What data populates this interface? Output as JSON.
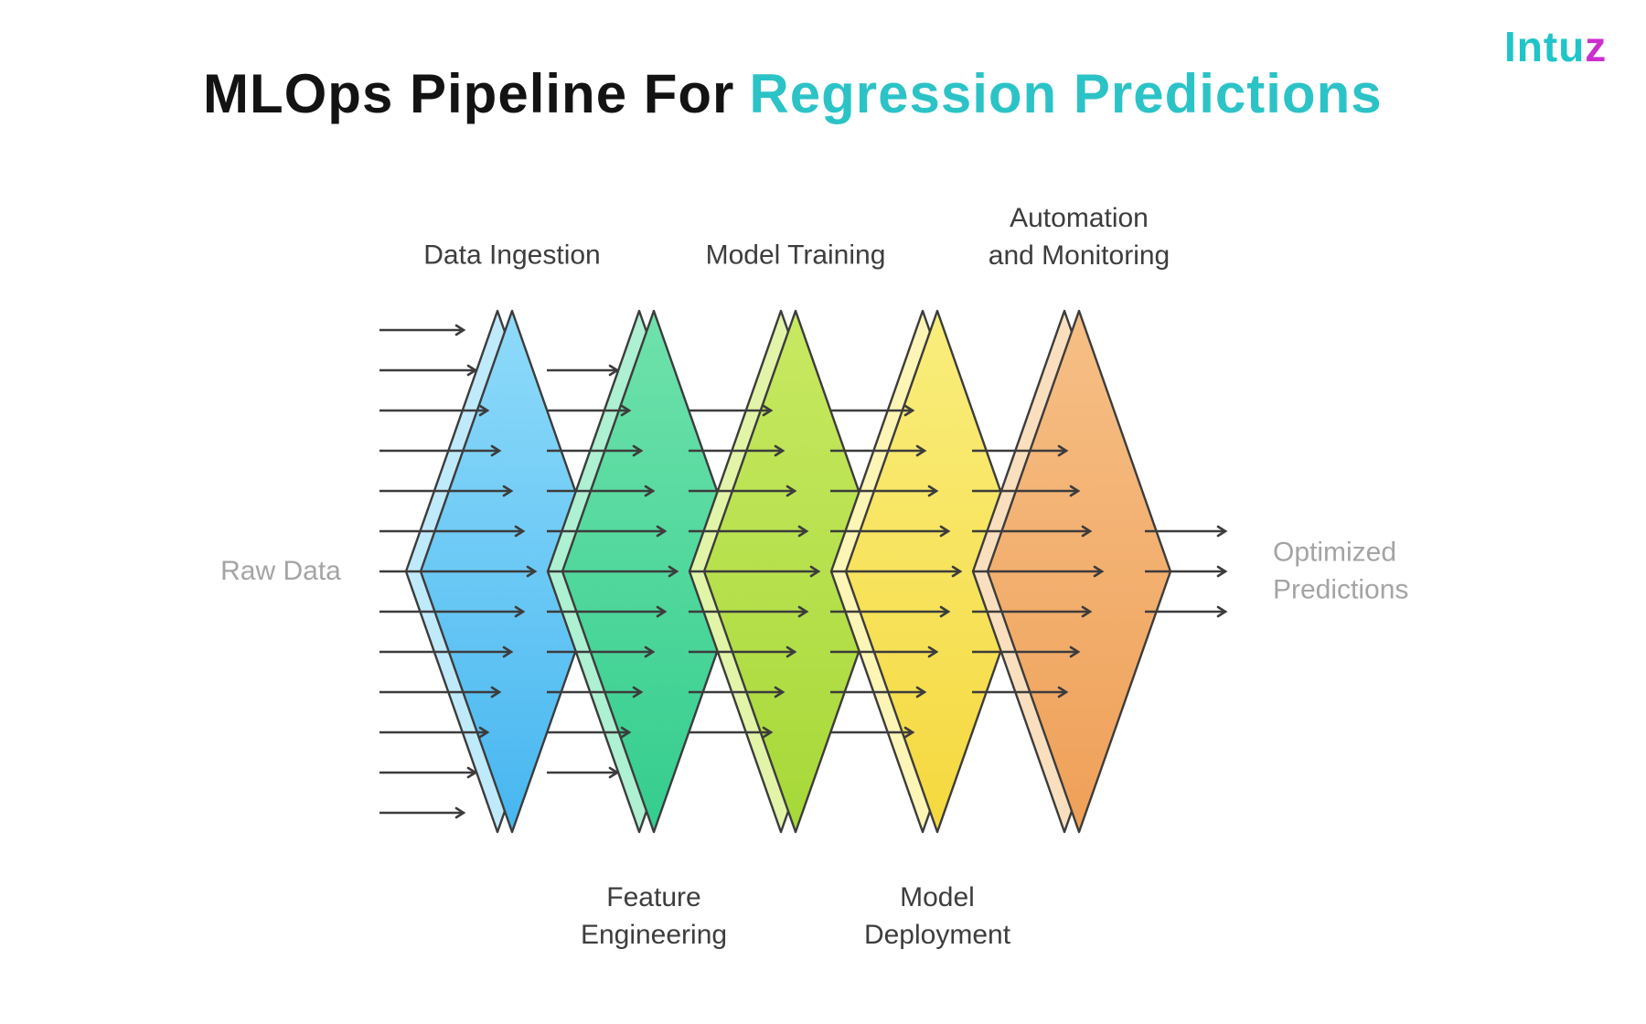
{
  "logo": {
    "text_main": "Intu",
    "text_accent": "z",
    "color": "#1ec5c9",
    "accent_color": "#cb30cf"
  },
  "title": {
    "prefix": "MLOps Pipeline For",
    "highlight": "Regression Predictions",
    "prefix_color": "#131313",
    "highlight_color": "#2cc3c7"
  },
  "diagram": {
    "input_label": "Raw Data",
    "output_label": "Optimized\nPredictions",
    "arrow_color": "#3c3c3c",
    "outline_color": "#3c3c3c",
    "stages": [
      {
        "name": "Data Ingestion",
        "label_position": "top",
        "color_top": "#8fdbfa",
        "color_bottom": "#47b6f0",
        "color_side": "#bfeafc"
      },
      {
        "name": "Feature\nEngineering",
        "label_position": "bottom",
        "color_top": "#6fe2ab",
        "color_bottom": "#34cd8e",
        "color_side": "#aef0d2"
      },
      {
        "name": "Model Training",
        "label_position": "top",
        "color_top": "#c8e962",
        "color_bottom": "#a6d838",
        "color_side": "#e2f4a8"
      },
      {
        "name": "Model\nDeployment",
        "label_position": "bottom",
        "color_top": "#f9ee7d",
        "color_bottom": "#f5d83e",
        "color_side": "#fcf5b5"
      },
      {
        "name": "Automation\nand Monitoring",
        "label_position": "top",
        "color_top": "#f6bf86",
        "color_bottom": "#efa058",
        "color_side": "#fadfbe"
      }
    ]
  }
}
